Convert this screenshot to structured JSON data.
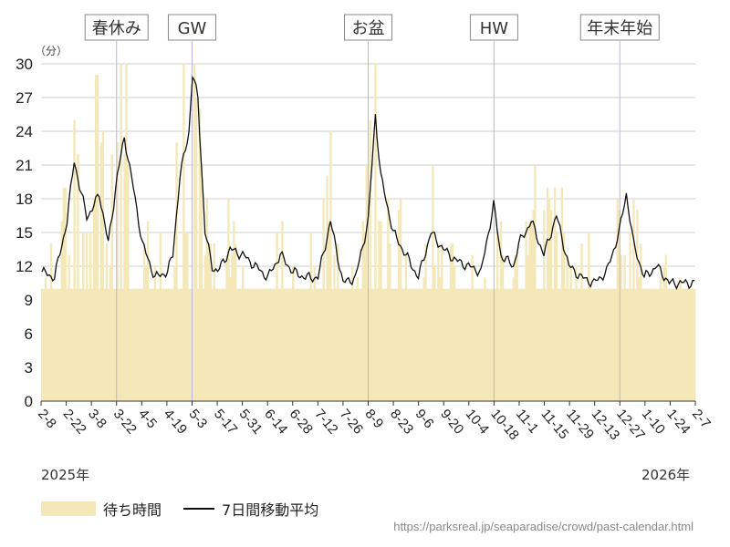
{
  "chart_data": {
    "type": "bar",
    "unit_label": "（分）",
    "ylim": [
      0,
      30
    ],
    "y_ticks": [
      0,
      3,
      6,
      9,
      12,
      15,
      18,
      21,
      24,
      27,
      30
    ],
    "x_ticks": [
      "2-8",
      "2-22",
      "3-8",
      "3-22",
      "4-5",
      "4-19",
      "5-3",
      "5-17",
      "5-31",
      "6-14",
      "6-28",
      "7-12",
      "7-26",
      "8-9",
      "8-23",
      "9-6",
      "9-20",
      "10-4",
      "10-18",
      "11-1",
      "11-15",
      "11-29",
      "12-13",
      "12-27",
      "1-10",
      "1-24",
      "2-7"
    ],
    "year_start_label": "2025年",
    "year_end_label": "2026年",
    "grid": true,
    "events": [
      {
        "label": "春休み",
        "tick": "3-22"
      },
      {
        "label": "GW",
        "tick": "5-3"
      },
      {
        "label": "お盆",
        "tick": "8-9"
      },
      {
        "label": "HW",
        "tick": "10-18"
      },
      {
        "label": "年末年始",
        "tick": "12-27"
      }
    ],
    "series": [
      {
        "name": "待ち時間",
        "kind": "bar",
        "color": "#f5e8b8"
      },
      {
        "name": "7日間移動平均",
        "kind": "line",
        "color": "#111111"
      }
    ],
    "moving_average_keypoints": [
      [
        "2-8",
        11.5
      ],
      [
        "2-15",
        11.0
      ],
      [
        "2-22",
        16
      ],
      [
        "2-26",
        21.5
      ],
      [
        "3-1",
        19
      ],
      [
        "3-5",
        16.5
      ],
      [
        "3-8",
        17
      ],
      [
        "3-12",
        18.5
      ],
      [
        "3-17",
        14
      ],
      [
        "3-22",
        20
      ],
      [
        "3-26",
        23.5
      ],
      [
        "4-1",
        18
      ],
      [
        "4-5",
        14
      ],
      [
        "4-12",
        11
      ],
      [
        "4-19",
        11.5
      ],
      [
        "4-22",
        13
      ],
      [
        "4-26",
        20
      ],
      [
        "5-1",
        24
      ],
      [
        "5-3",
        29
      ],
      [
        "5-6",
        27
      ],
      [
        "5-10",
        15
      ],
      [
        "5-14",
        12
      ],
      [
        "5-17",
        11.5
      ],
      [
        "5-24",
        13.5
      ],
      [
        "5-31",
        13
      ],
      [
        "6-7",
        12
      ],
      [
        "6-14",
        11
      ],
      [
        "6-21",
        13
      ],
      [
        "6-28",
        11.5
      ],
      [
        "7-5",
        11
      ],
      [
        "7-12",
        11
      ],
      [
        "7-19",
        16
      ],
      [
        "7-26",
        10.5
      ],
      [
        "8-2",
        11
      ],
      [
        "8-9",
        16
      ],
      [
        "8-13",
        25.5
      ],
      [
        "8-16",
        20
      ],
      [
        "8-23",
        15
      ],
      [
        "8-30",
        13
      ],
      [
        "9-6",
        11
      ],
      [
        "9-13",
        15
      ],
      [
        "9-20",
        13.5
      ],
      [
        "9-27",
        12.5
      ],
      [
        "10-4",
        12
      ],
      [
        "10-11",
        11.5
      ],
      [
        "10-18",
        17.5
      ],
      [
        "10-22",
        13
      ],
      [
        "10-29",
        12
      ],
      [
        "11-1",
        14
      ],
      [
        "11-8",
        16
      ],
      [
        "11-15",
        13
      ],
      [
        "11-22",
        16.5
      ],
      [
        "11-29",
        12
      ],
      [
        "12-6",
        11
      ],
      [
        "12-13",
        10.5
      ],
      [
        "12-20",
        11.5
      ],
      [
        "12-27",
        15
      ],
      [
        "12-31",
        18.5
      ],
      [
        "1-4",
        14
      ],
      [
        "1-10",
        11
      ],
      [
        "1-17",
        12
      ],
      [
        "1-24",
        10.5
      ],
      [
        "2-7",
        10.5
      ]
    ]
  },
  "legend": {
    "bar_label": "待ち時間",
    "line_label": "7日間移動平均"
  },
  "source": "https://parksreal.jp/seaparadise/crowd/past-calendar.html"
}
